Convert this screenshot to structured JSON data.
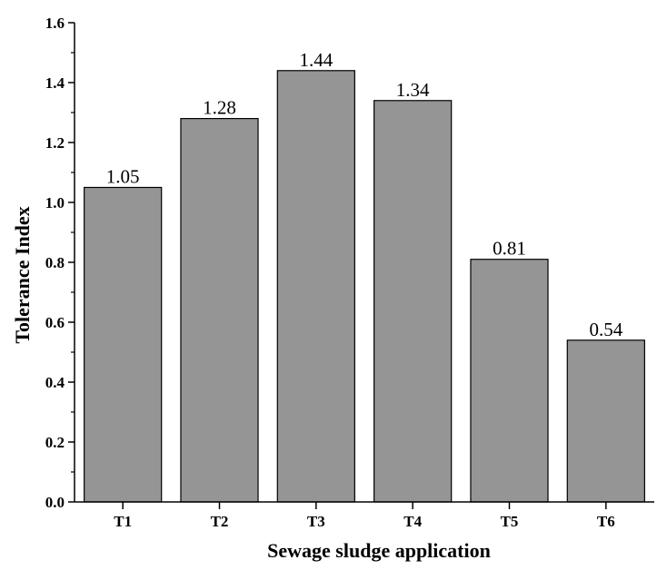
{
  "chart_data": {
    "type": "bar",
    "categories": [
      "T1",
      "T2",
      "T3",
      "T4",
      "T5",
      "T6"
    ],
    "values": [
      1.05,
      1.28,
      1.44,
      1.34,
      0.81,
      0.54
    ],
    "data_labels": [
      "1.05",
      "1.28",
      "1.44",
      "1.34",
      "0.81",
      "0.54"
    ],
    "title": "",
    "xlabel": "Sewage sludge application",
    "ylabel": "Tolerance Index",
    "ylim": [
      0,
      1.6
    ],
    "yticks": [
      "0.0",
      "0.2",
      "0.4",
      "0.6",
      "0.8",
      "1.0",
      "1.2",
      "1.4",
      "1.6"
    ],
    "grid": false,
    "legend": "none",
    "bar_color": "#959595",
    "bar_edge_color": "#000000"
  }
}
